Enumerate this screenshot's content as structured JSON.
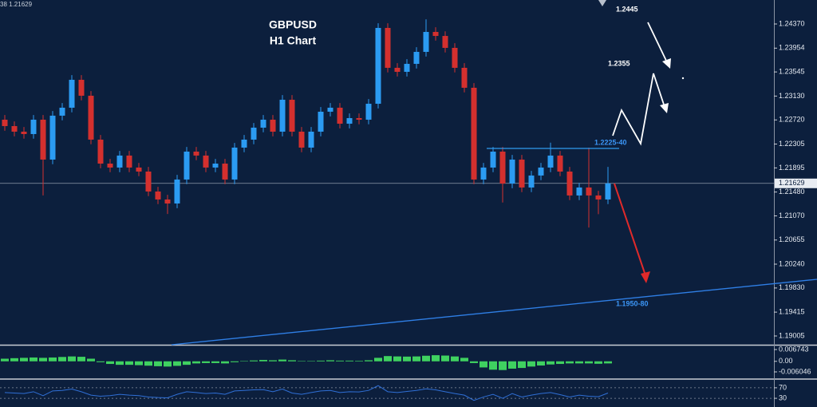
{
  "chart_data": [
    {
      "type": "candlestick",
      "corner_label": "38 1.21629",
      "title": "GBPUSD",
      "subtitle": "H1 Chart",
      "annotations": [
        {
          "text": "1.2445"
        },
        {
          "text": "1.2355"
        },
        {
          "text": "1.2225-40"
        },
        {
          "text": "1.1950-80"
        }
      ],
      "up_color": "#2b9bf2",
      "down_color": "#d4302e",
      "open": [
        1.22724,
        1.22614,
        1.22518,
        1.22477,
        1.22724,
        1.22038,
        1.22793,
        1.2293,
        1.2341,
        1.23136,
        1.22381,
        1.21969,
        1.21901,
        1.22107,
        1.21901,
        1.21832,
        1.21489,
        1.21352,
        1.21283,
        1.21695,
        1.22175,
        1.22107,
        1.21901,
        1.21969,
        1.21695,
        1.22244,
        1.22381,
        1.22587,
        1.22724,
        1.22518,
        1.23067,
        1.22518,
        1.22244,
        1.22518,
        1.22861,
        1.2293,
        1.22655,
        1.22751,
        1.22724,
        1.22998,
        1.24302,
        1.23616,
        1.23547,
        1.23684,
        1.2389,
        1.24233,
        1.24164,
        1.23959,
        1.23616,
        1.23273,
        1.21695,
        1.21901,
        1.22175,
        1.21626,
        1.22038,
        1.21558,
        1.21764,
        1.21901,
        1.22107,
        1.21832,
        1.21421,
        1.21558,
        1.21421,
        1.21352
      ],
      "high": [
        1.22804,
        1.22694,
        1.22598,
        1.22804,
        1.22804,
        1.22873,
        1.2301,
        1.2349,
        1.2349,
        1.23216,
        1.22461,
        1.22049,
        1.22187,
        1.22187,
        1.21981,
        1.21912,
        1.21569,
        1.21432,
        1.21775,
        1.22255,
        1.22255,
        1.22187,
        1.22049,
        1.22049,
        1.22324,
        1.22461,
        1.22667,
        1.22804,
        1.22804,
        1.23147,
        1.23147,
        1.22598,
        1.22598,
        1.22941,
        1.2301,
        1.2301,
        1.22831,
        1.22831,
        1.23078,
        1.24382,
        1.24382,
        1.23696,
        1.23764,
        1.2397,
        1.2445,
        1.24313,
        1.24244,
        1.24039,
        1.23696,
        1.23353,
        1.21981,
        1.22255,
        1.22255,
        1.22118,
        1.22118,
        1.21844,
        1.21981,
        1.2233,
        1.22187,
        1.21912,
        1.21638,
        1.22244,
        1.21501,
        1.21912
      ],
      "low": [
        1.22534,
        1.22438,
        1.22397,
        1.22397,
        1.21421,
        1.21958,
        1.22713,
        1.2285,
        1.23056,
        1.22301,
        1.21889,
        1.21821,
        1.21821,
        1.21821,
        1.21752,
        1.21409,
        1.21272,
        1.21103,
        1.21203,
        1.21615,
        1.22027,
        1.21821,
        1.21821,
        1.21615,
        1.21615,
        1.22164,
        1.22301,
        1.22507,
        1.22438,
        1.22438,
        1.22438,
        1.22164,
        1.22164,
        1.22438,
        1.22781,
        1.22575,
        1.22575,
        1.22644,
        1.22644,
        1.22918,
        1.23536,
        1.23467,
        1.23467,
        1.23604,
        1.2381,
        1.24084,
        1.23879,
        1.23536,
        1.23193,
        1.21615,
        1.21615,
        1.21821,
        1.213,
        1.21546,
        1.21478,
        1.21478,
        1.21684,
        1.21821,
        1.21752,
        1.21341,
        1.21341,
        1.2087,
        1.211,
        1.21272
      ],
      "close": [
        1.22614,
        1.22518,
        1.22477,
        1.22724,
        1.22038,
        1.22793,
        1.2293,
        1.2341,
        1.23136,
        1.22381,
        1.21969,
        1.21901,
        1.22107,
        1.21901,
        1.21832,
        1.21489,
        1.21352,
        1.21283,
        1.21695,
        1.22175,
        1.22107,
        1.21901,
        1.21969,
        1.21695,
        1.22244,
        1.22381,
        1.22587,
        1.22724,
        1.22518,
        1.23067,
        1.22518,
        1.22244,
        1.22518,
        1.22861,
        1.2293,
        1.22655,
        1.22751,
        1.22724,
        1.22998,
        1.24302,
        1.23616,
        1.23547,
        1.23684,
        1.2389,
        1.24233,
        1.24164,
        1.23959,
        1.23616,
        1.23273,
        1.21695,
        1.21901,
        1.22175,
        1.21626,
        1.22038,
        1.21558,
        1.21764,
        1.21901,
        1.22107,
        1.21832,
        1.21421,
        1.21558,
        1.21421,
        1.21352,
        1.21629
      ],
      "last_price": {
        "value": 1.21629,
        "label": "1.21629"
      },
      "ylim": [
        1.18854,
        1.24782
      ],
      "yticks": [
        {
          "value": 1.2437,
          "label": "1.24370"
        },
        1.23954,
        1.23545,
        {
          "value": 1.2313,
          "label": "1.23130"
        },
        {
          "value": 1.2272,
          "label": "1.22720"
        },
        1.22305,
        1.21895,
        {
          "value": 1.2148,
          "label": "1.21480"
        },
        {
          "value": 1.2107,
          "label": "1.21070"
        },
        1.20655,
        {
          "value": 1.2024,
          "label": "1.20240"
        },
        {
          "value": 1.1983,
          "label": "1.19830"
        },
        1.19415,
        1.19005
      ]
    },
    {
      "type": "bar",
      "color": "#3fd160",
      "values": [
        0.0015,
        0.0018,
        0.002,
        0.0022,
        0.002,
        0.0022,
        0.0025,
        0.0028,
        0.0026,
        0.0015,
        -0.0005,
        -0.0015,
        -0.002,
        -0.002,
        -0.0022,
        -0.0025,
        -0.0028,
        -0.003,
        -0.0026,
        -0.002,
        -0.0012,
        -0.001,
        -0.001,
        -0.0012,
        -0.0005,
        0.0002,
        0.0005,
        0.0008,
        0.0006,
        0.001,
        0.0006,
        0.0002,
        0.0002,
        0.0004,
        0.0006,
        0.0004,
        0.0004,
        0.0003,
        0.0006,
        0.002,
        0.003,
        0.0028,
        0.0027,
        0.0028,
        0.0032,
        0.0035,
        0.0033,
        0.0028,
        0.002,
        -0.001,
        -0.0035,
        -0.0048,
        -0.005,
        -0.0042,
        -0.0038,
        -0.003,
        -0.0024,
        -0.0018,
        -0.0015,
        -0.0012,
        -0.0012,
        -0.0012,
        -0.0014,
        -0.0012
      ],
      "ylim": [
        -0.009702,
        0.009028
      ],
      "yticks": [
        0.006743,
        {
          "value": 0,
          "label": "0.00"
        },
        -0.006046
      ]
    },
    {
      "type": "line",
      "color": "#2f6fd6",
      "values": [
        52,
        50,
        48,
        55,
        40,
        58,
        60,
        65,
        55,
        42,
        38,
        40,
        45,
        42,
        40,
        35,
        33,
        32,
        45,
        55,
        52,
        48,
        50,
        45,
        58,
        60,
        62,
        63,
        55,
        65,
        50,
        45,
        52,
        58,
        60,
        52,
        55,
        54,
        60,
        78,
        55,
        52,
        56,
        60,
        66,
        62,
        55,
        48,
        42,
        22,
        35,
        45,
        30,
        48,
        35,
        42,
        48,
        52,
        44,
        35,
        42,
        38,
        36,
        50
      ],
      "ylim": [
        0,
        100
      ],
      "yticks": [
        70,
        30
      ]
    }
  ]
}
